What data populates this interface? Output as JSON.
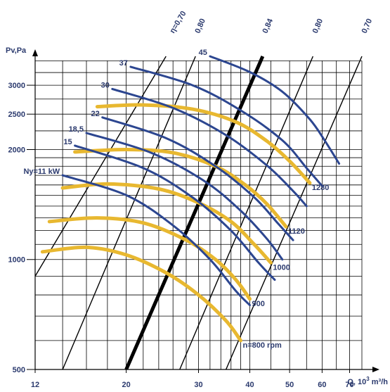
{
  "chart_data": {
    "type": "line",
    "xlabel": "Q, 10",
    "xlabel_exp": "3",
    "xlabel_unit": " m³/h",
    "ylabel": "Pv,Pa",
    "x_scale": "log",
    "y_scale": "log",
    "xlim": [
      12,
      75
    ],
    "ylim": [
      500,
      3600
    ],
    "x_ticks": [
      12,
      20,
      30,
      40,
      50,
      60,
      70
    ],
    "y_ticks": [
      500,
      1000,
      2000,
      2500,
      3000
    ],
    "x_grid": [
      12,
      14,
      16,
      18,
      20,
      22,
      24,
      26,
      28,
      30,
      32,
      34,
      36,
      38,
      40,
      45,
      50,
      55,
      60,
      65,
      70,
      75
    ],
    "y_grid": [
      500,
      600,
      700,
      800,
      900,
      1000,
      1100,
      1200,
      1300,
      1400,
      1500,
      1600,
      1700,
      1800,
      1900,
      2000,
      2250,
      2500,
      2750,
      3000,
      3250,
      3500
    ],
    "efficiency_lines": [
      {
        "label": "η=0,70",
        "points": [
          [
            12,
            900
          ],
          [
            25,
            3600
          ]
        ],
        "bold": false
      },
      {
        "label": "0,80",
        "points": [
          [
            14,
            500
          ],
          [
            29.5,
            3600
          ]
        ],
        "bold": false
      },
      {
        "label": "0,84",
        "points": [
          [
            20,
            500
          ],
          [
            43,
            3600
          ]
        ],
        "bold": true
      },
      {
        "label": "0,80",
        "points": [
          [
            27,
            500
          ],
          [
            57,
            3600
          ]
        ],
        "bold": false
      },
      {
        "label": "0,70",
        "points": [
          [
            35,
            500
          ],
          [
            75,
            3600
          ]
        ],
        "bold": false
      }
    ],
    "speed_curves": [
      {
        "label": "n=800 rpm",
        "points": [
          [
            12.5,
            1050
          ],
          [
            16,
            1080
          ],
          [
            20,
            1030
          ],
          [
            25,
            920
          ],
          [
            30,
            800
          ],
          [
            35,
            680
          ],
          [
            38,
            600
          ]
        ]
      },
      {
        "label": "900",
        "points": [
          [
            13,
            1270
          ],
          [
            17,
            1300
          ],
          [
            22,
            1260
          ],
          [
            28,
            1130
          ],
          [
            33,
            1000
          ],
          [
            37,
            880
          ],
          [
            40,
            780
          ]
        ]
      },
      {
        "label": "1000",
        "points": [
          [
            14,
            1570
          ],
          [
            18,
            1610
          ],
          [
            24,
            1560
          ],
          [
            30,
            1430
          ],
          [
            36,
            1270
          ],
          [
            41,
            1100
          ],
          [
            45,
            980
          ]
        ]
      },
      {
        "label": "1120",
        "points": [
          [
            15,
            1970
          ],
          [
            20,
            2000
          ],
          [
            26,
            1960
          ],
          [
            33,
            1800
          ],
          [
            39,
            1600
          ],
          [
            44,
            1420
          ],
          [
            49,
            1230
          ]
        ]
      },
      {
        "label": "1280",
        "points": [
          [
            17,
            2620
          ],
          [
            22,
            2650
          ],
          [
            29,
            2580
          ],
          [
            37,
            2380
          ],
          [
            44,
            2110
          ],
          [
            50,
            1860
          ],
          [
            56,
            1620
          ]
        ]
      }
    ],
    "power_curves": [
      {
        "label": "Ny=11 kW",
        "points": [
          [
            14,
            1700
          ],
          [
            20,
            1500
          ],
          [
            26,
            1240
          ],
          [
            32,
            1000
          ],
          [
            37,
            820
          ],
          [
            40,
            750
          ]
        ]
      },
      {
        "label": "15",
        "points": [
          [
            15,
            2050
          ],
          [
            22,
            1780
          ],
          [
            29,
            1480
          ],
          [
            36,
            1200
          ],
          [
            42,
            980
          ],
          [
            46,
            880
          ]
        ]
      },
      {
        "label": "18,5",
        "points": [
          [
            16,
            2220
          ],
          [
            23,
            1960
          ],
          [
            31,
            1640
          ],
          [
            38,
            1360
          ],
          [
            44,
            1140
          ],
          [
            48,
            1000
          ]
        ]
      },
      {
        "label": "22",
        "points": [
          [
            17.5,
            2450
          ],
          [
            25,
            2150
          ],
          [
            33,
            1800
          ],
          [
            41,
            1480
          ],
          [
            47,
            1250
          ],
          [
            51,
            1130
          ]
        ]
      },
      {
        "label": "30",
        "points": [
          [
            18.5,
            2930
          ],
          [
            26,
            2600
          ],
          [
            35,
            2190
          ],
          [
            44,
            1810
          ],
          [
            51,
            1540
          ],
          [
            55,
            1400
          ]
        ]
      },
      {
        "label": "37",
        "points": [
          [
            20.5,
            3370
          ],
          [
            29,
            3000
          ],
          [
            38,
            2560
          ],
          [
            48,
            2120
          ],
          [
            55,
            1780
          ],
          [
            60,
            1590
          ]
        ]
      },
      {
        "label": "45",
        "points": [
          [
            32,
            3600
          ],
          [
            40,
            3260
          ],
          [
            48,
            2880
          ],
          [
            56,
            2420
          ],
          [
            61,
            2110
          ],
          [
            66,
            1830
          ]
        ]
      }
    ],
    "colors": {
      "axis": "#000000",
      "grid": "#000000",
      "speed_curve": "#e8b830",
      "power_curve": "#2c4690",
      "text": "#2b3a6e"
    }
  }
}
